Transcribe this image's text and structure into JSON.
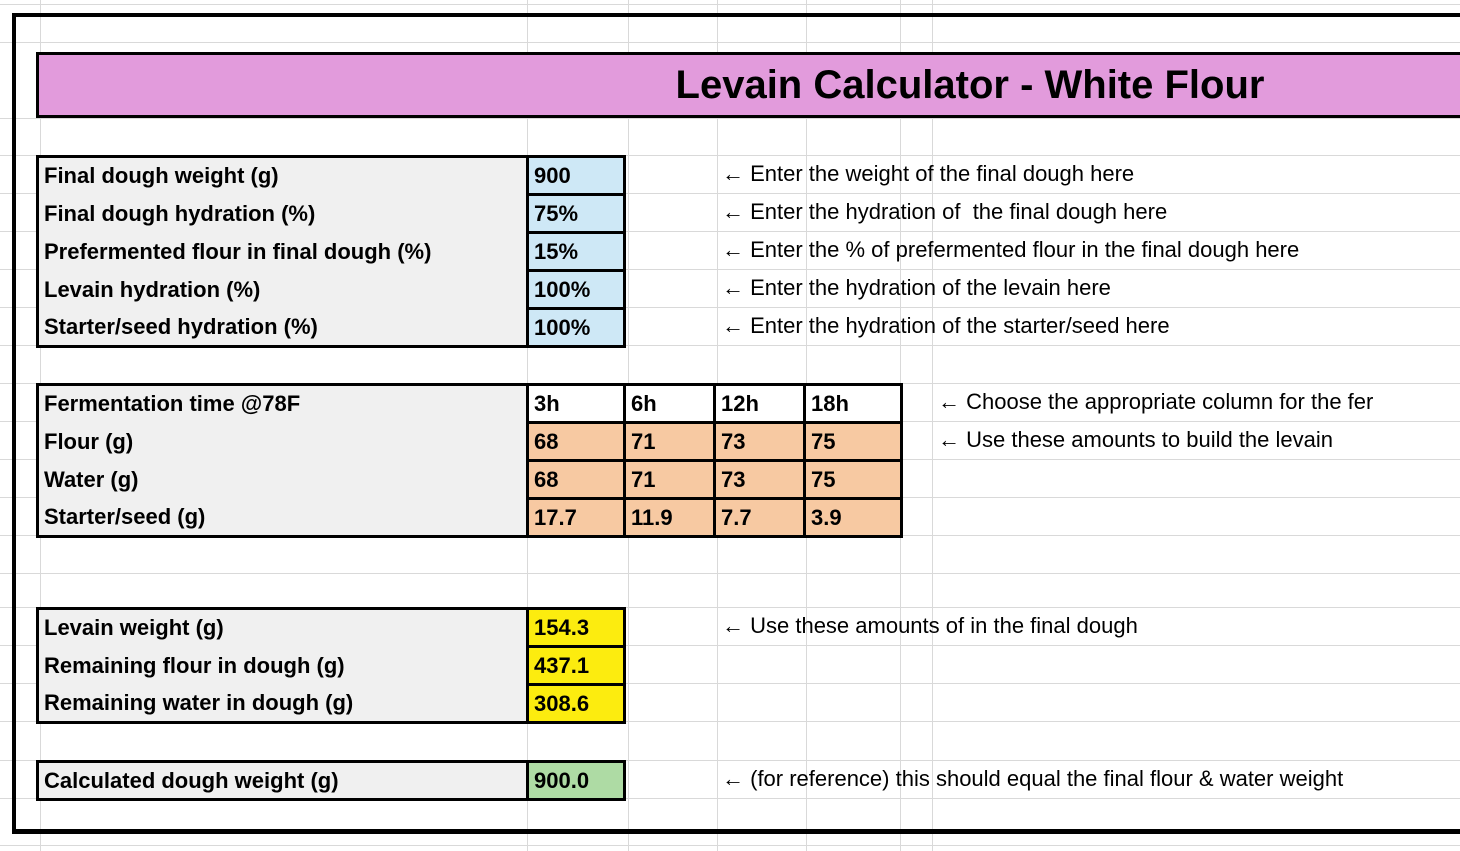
{
  "title": "Levain Calculator - White Flour",
  "inputs": {
    "rows": [
      {
        "label": "Final dough weight (g)",
        "value": "900",
        "note": "← Enter the weight of the final dough here"
      },
      {
        "label": "Final dough hydration (%)",
        "value": "75%",
        "note": "← Enter the hydration of  the final dough here"
      },
      {
        "label": "Prefermented flour in final dough (%)",
        "value": "15%",
        "note": "← Enter the % of prefermented flour in the final dough here"
      },
      {
        "label": "Levain hydration (%)",
        "value": "100%",
        "note": "← Enter the hydration of the levain here"
      },
      {
        "label": "Starter/seed hydration (%)",
        "value": "100%",
        "note": "← Enter the hydration of the starter/seed here"
      }
    ]
  },
  "fermentation": {
    "label": "Fermentation time @78F",
    "times": [
      "3h",
      "6h",
      "12h",
      "18h"
    ],
    "rows": [
      {
        "label": "Flour (g)",
        "values": [
          "68",
          "71",
          "73",
          "75"
        ]
      },
      {
        "label": "Water (g)",
        "values": [
          "68",
          "71",
          "73",
          "75"
        ]
      },
      {
        "label": "Starter/seed (g)",
        "values": [
          "17.7",
          "11.9",
          "7.7",
          "3.9"
        ]
      }
    ],
    "notes": [
      "← Choose the appropriate column for the fer",
      "← Use these amounts to build the levain"
    ]
  },
  "results": {
    "rows": [
      {
        "label": "Levain weight (g)",
        "value": "154.3"
      },
      {
        "label": "Remaining flour in dough (g)",
        "value": "437.1"
      },
      {
        "label": "Remaining water in dough (g)",
        "value": "308.6"
      }
    ],
    "note": "← Use these amounts of in the final dough"
  },
  "calculated": {
    "label": "Calculated dough weight (g)",
    "value": "900.0",
    "note": "← (for reference) this should equal the final flour & water weight"
  },
  "colors": {
    "banner": "#e29bdc",
    "input_cell": "#cee8f6",
    "ferment_cell": "#f7c9a2",
    "result_cell": "#fcec0f",
    "calculated_cell": "#aedba4",
    "label_cell": "#f0f0f0"
  }
}
